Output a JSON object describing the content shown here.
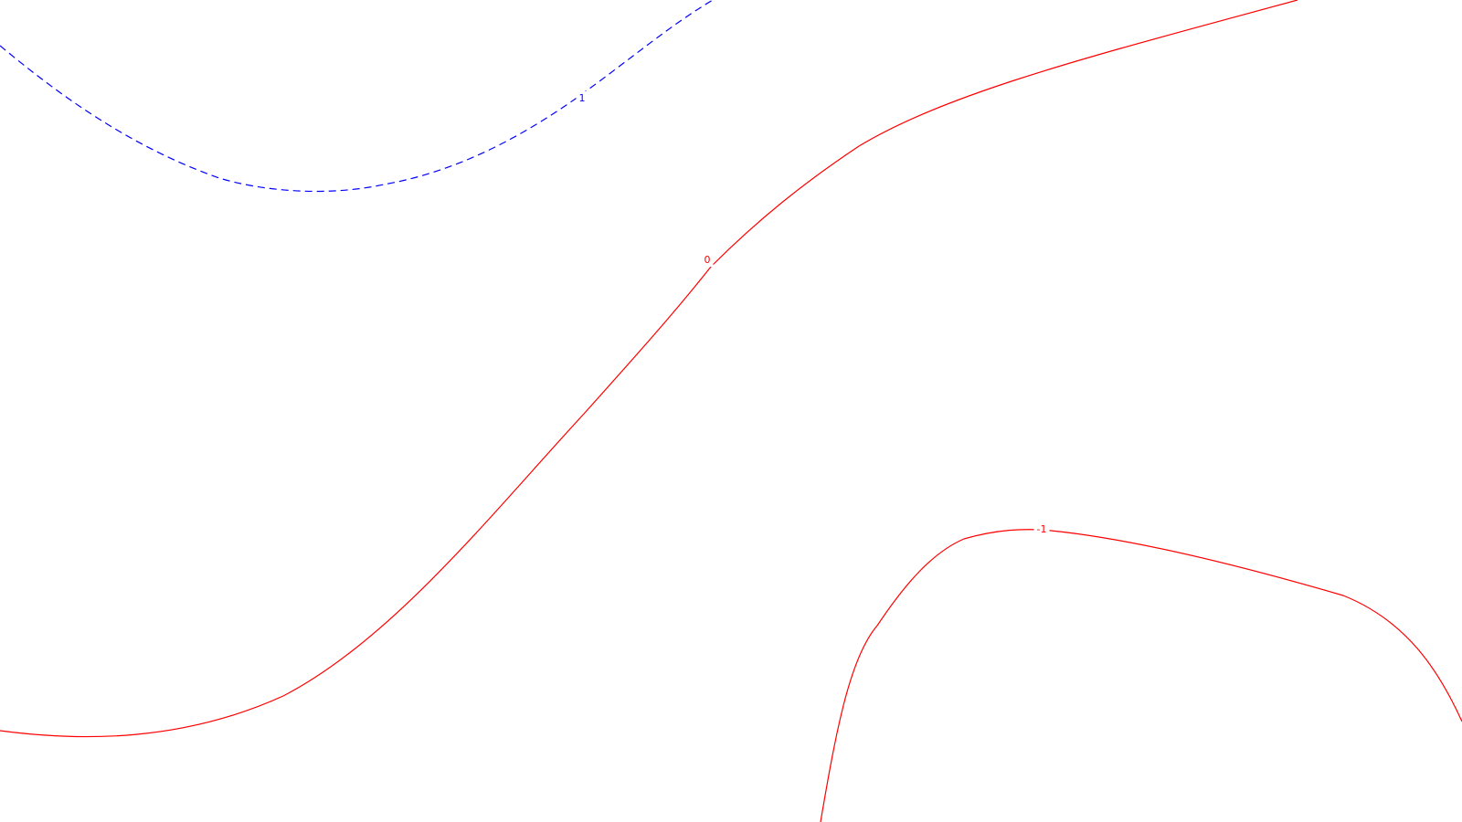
{
  "chart_data": {
    "type": "contour",
    "levels": [
      {
        "value": 1,
        "label": "1",
        "color": "#0000ff",
        "style": "dashed"
      },
      {
        "value": 0,
        "label": "0",
        "color": "#ff0000",
        "style": "solid"
      },
      {
        "value": -1,
        "label": "-1",
        "color": "#ff0000",
        "style": "solid"
      }
    ],
    "grid": false,
    "axes_visible": false
  }
}
